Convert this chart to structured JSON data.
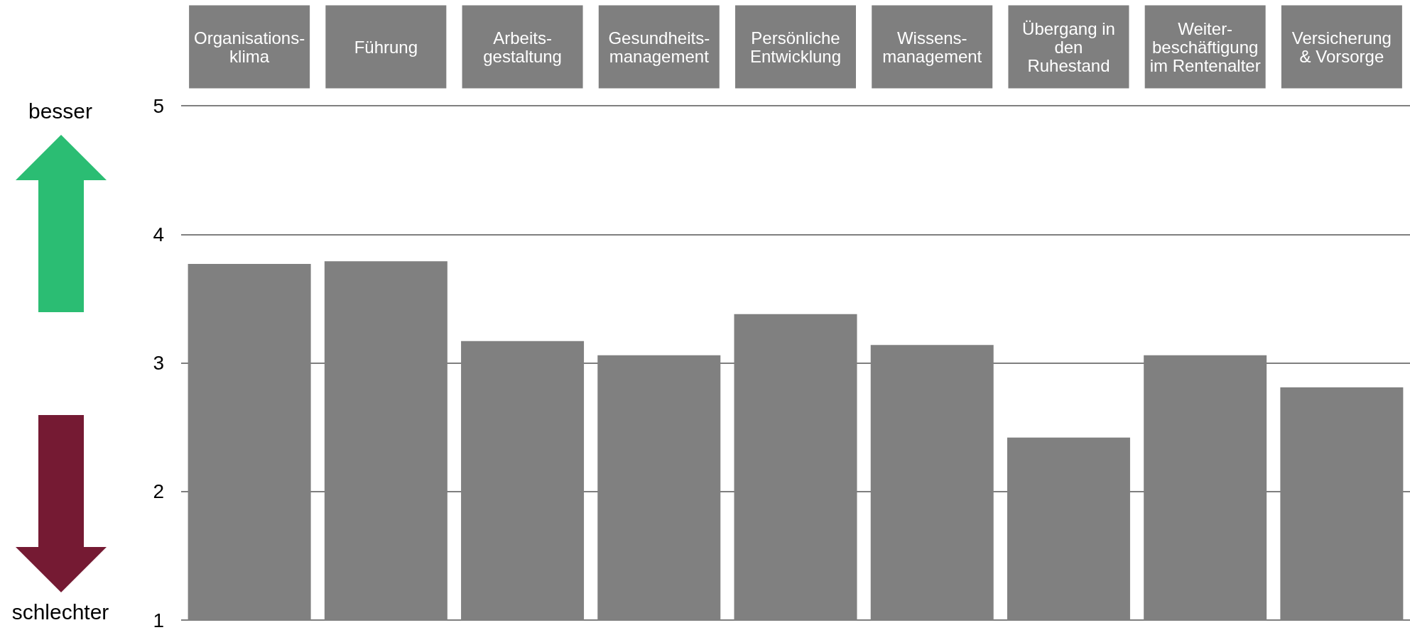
{
  "chart_data": {
    "type": "bar",
    "categories": [
      "Organisations-\nklima",
      "Führung",
      "Arbeits-\ngestaltung",
      "Gesundheits-\nmanagement",
      "Persönliche\nEntwicklung",
      "Wissens-\nmanagement",
      "Übergang in\nden\nRuhestand",
      "Weiter-\nbeschäftigung\nim Rentenalter",
      "Versicherung\n& Vorsorge"
    ],
    "values": [
      3.77,
      3.79,
      3.17,
      3.06,
      3.38,
      3.14,
      2.42,
      3.06,
      2.81
    ],
    "color": "#808080",
    "ylim": [
      1,
      5
    ],
    "yticks": [
      1,
      2,
      3,
      4,
      5
    ],
    "grid": "y",
    "annotations": [
      "besser",
      "schlechter"
    ]
  }
}
